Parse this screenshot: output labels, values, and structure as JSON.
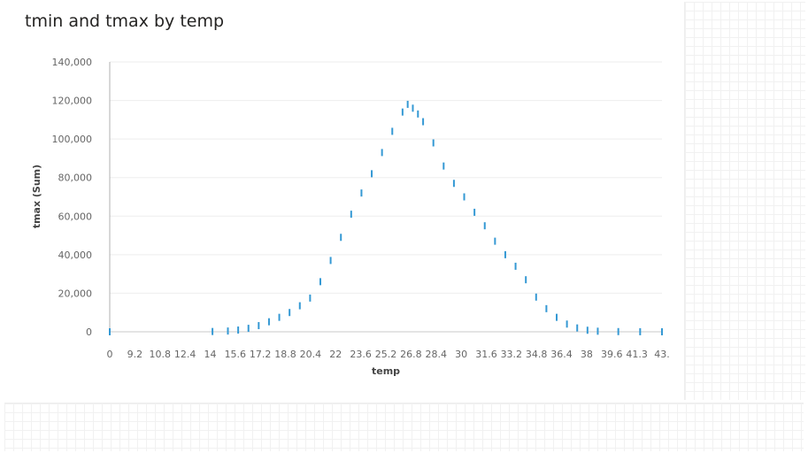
{
  "chart_data": {
    "type": "scatter",
    "title": "tmin and tmax by temp",
    "xlabel": "temp",
    "ylabel": "tmax (Sum)",
    "xlim": [
      0,
      43
    ],
    "ylim": [
      0,
      140000
    ],
    "yticks": [
      0,
      20000,
      40000,
      60000,
      80000,
      100000,
      120000,
      140000
    ],
    "ytick_labels": [
      "0",
      "20,000",
      "40,000",
      "60,000",
      "80,000",
      "100,000",
      "120,000",
      "140,000"
    ],
    "xtick_labels": [
      "0",
      "9.2",
      "10.8",
      "12.4",
      "14",
      "15.6",
      "17.2",
      "18.8",
      "20.4",
      "22",
      "23.6",
      "25.2",
      "26.8",
      "28.4",
      "30",
      "31.6",
      "33.2",
      "34.8",
      "36.4",
      "38",
      "39.6",
      "41.3",
      "43."
    ],
    "grid": true,
    "color": "#3599d4",
    "series": [
      {
        "x": [
          0,
          8.0,
          9.2,
          10.0,
          10.8,
          11.6,
          12.4,
          13.2,
          14.0,
          14.8,
          15.6,
          16.4,
          17.2,
          18.0,
          18.8,
          19.6,
          20.4,
          21.2,
          22.0,
          22.8,
          23.2,
          23.6,
          24.0,
          24.4,
          25.2,
          26.0,
          26.8,
          27.6,
          28.4,
          29.2,
          30.0,
          30.8,
          31.6,
          32.4,
          33.2,
          34.0,
          34.8,
          35.6,
          36.4,
          37.2,
          38.0,
          39.6,
          41.3,
          43.0
        ],
        "y": [
          0,
          150,
          400,
          900,
          1800,
          3200,
          5200,
          7500,
          10000,
          13500,
          17500,
          26000,
          37000,
          49000,
          61000,
          72000,
          82000,
          93000,
          104000,
          114000,
          118000,
          116000,
          113000,
          109000,
          98000,
          86000,
          77000,
          70000,
          62000,
          55000,
          47000,
          40000,
          34000,
          27000,
          18000,
          12000,
          7500,
          4000,
          2000,
          800,
          300,
          100,
          30,
          0
        ]
      }
    ]
  }
}
